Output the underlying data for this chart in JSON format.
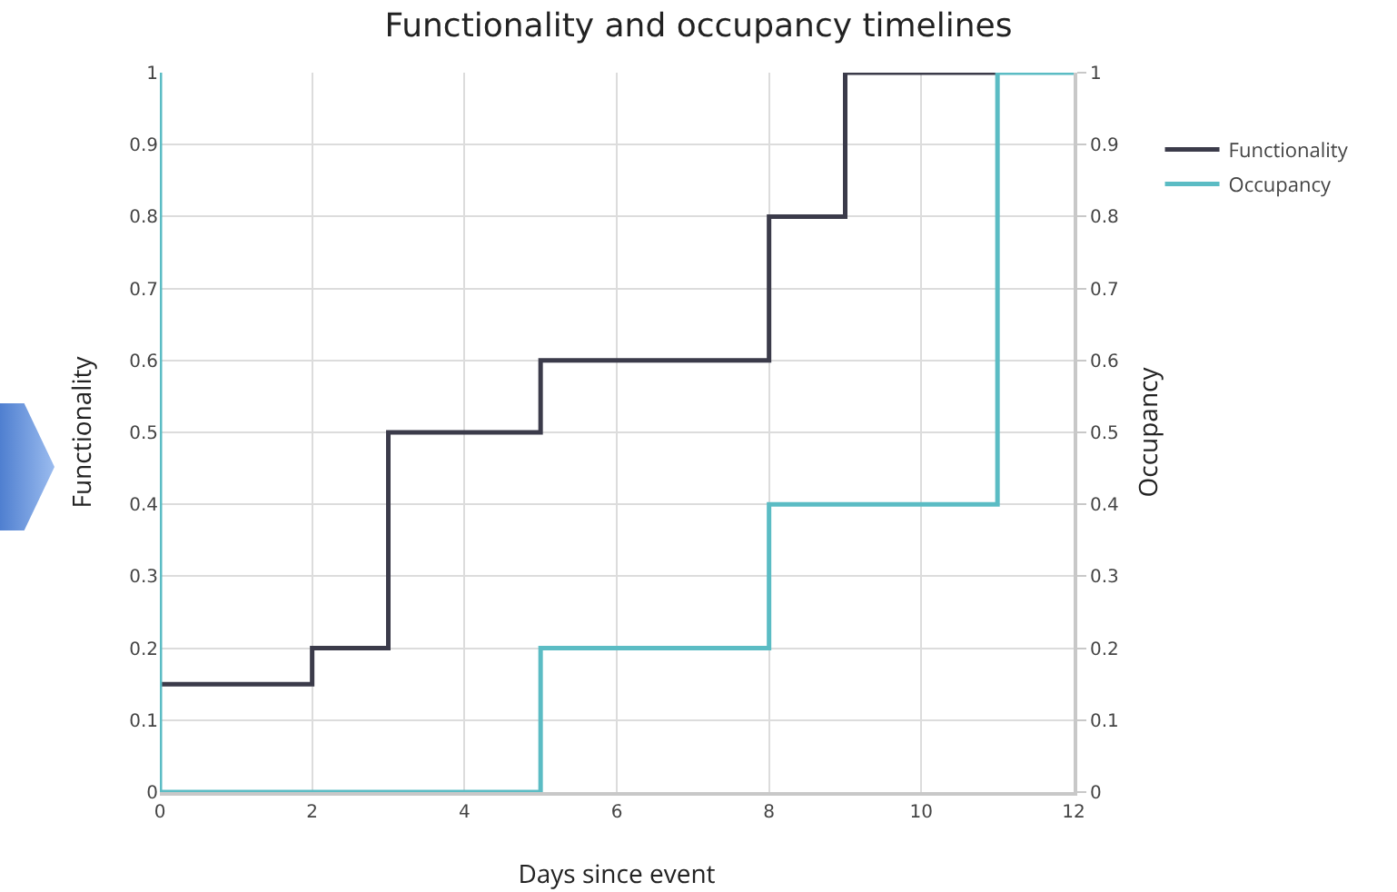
{
  "chart_data": {
    "type": "step",
    "title": "Functionality and occupancy timelines",
    "xlabel": "Days since event",
    "ylabel": "Functionality",
    "y2label": "Occupancy",
    "series": [
      {
        "name": "Functionality",
        "color": "#3b3b4a",
        "x": [
          0,
          2,
          3,
          5,
          8,
          9,
          11
        ],
        "values": [
          0.15,
          0.2,
          0.5,
          0.6,
          0.8,
          1,
          1
        ]
      },
      {
        "name": "Occupancy",
        "color": "#5bbcc4",
        "axis": "y2",
        "x": [
          0,
          0,
          5,
          8,
          11,
          12
        ],
        "values": [
          1,
          0,
          0.2,
          0.4,
          1,
          1
        ]
      }
    ],
    "xlim": [
      0,
      12
    ],
    "xticks": [
      0,
      2,
      4,
      6,
      8,
      10,
      12
    ],
    "ylim": [
      0,
      1
    ],
    "yticks": [
      0,
      0.1,
      0.2,
      0.3,
      0.4,
      0.5,
      0.6,
      0.7,
      0.8,
      0.9,
      1
    ],
    "y2lim": [
      0,
      1
    ],
    "y2ticks": [
      0,
      0.1,
      0.2,
      0.3,
      0.4,
      0.5,
      0.6,
      0.7,
      0.8,
      0.9,
      1
    ],
    "grid": true,
    "legend": "right",
    "marker": "none",
    "line_style": "solid"
  }
}
